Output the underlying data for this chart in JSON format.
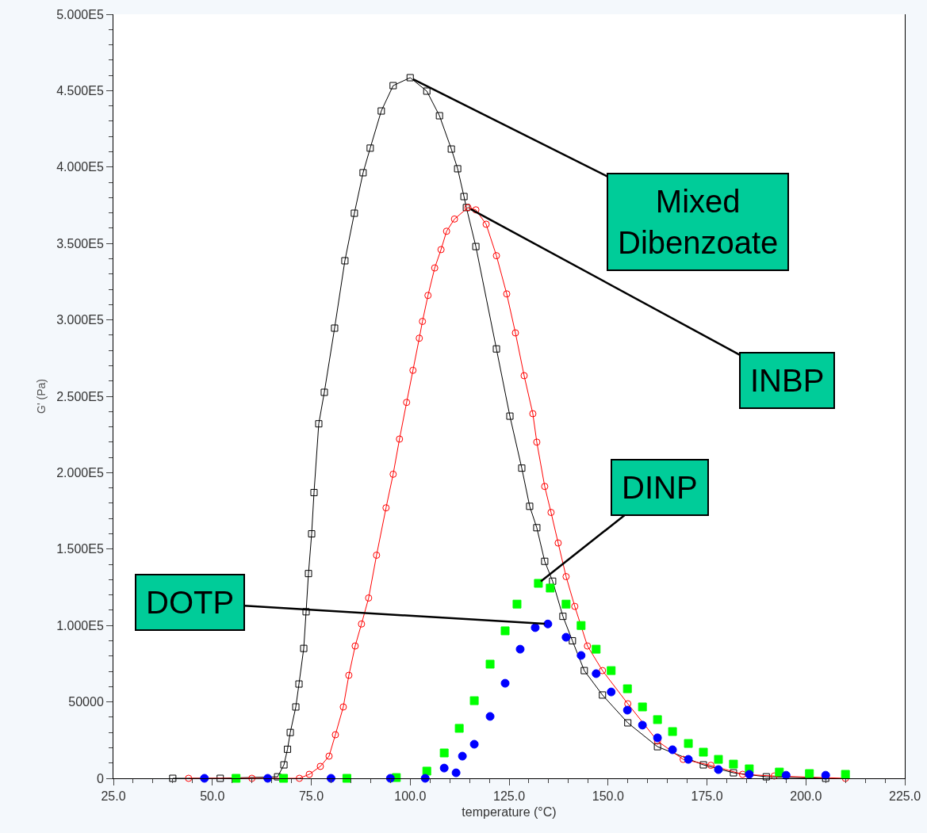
{
  "chart_data": {
    "type": "line",
    "xlabel": "temperature (°C)",
    "ylabel": "G' (Pa)",
    "xlim": [
      25,
      225
    ],
    "xticks": [
      {
        "value": 25,
        "label": "25.0"
      },
      {
        "value": 50,
        "label": "50.0"
      },
      {
        "value": 75,
        "label": "75.0"
      },
      {
        "value": 100,
        "label": "100.0"
      },
      {
        "value": 125,
        "label": "125.0"
      },
      {
        "value": 150,
        "label": "150.0"
      },
      {
        "value": 175,
        "label": "175.0"
      },
      {
        "value": 200,
        "label": "200.0"
      },
      {
        "value": 225,
        "label": "225.0"
      }
    ],
    "ylim": [
      0,
      500000
    ],
    "yticks": [
      0,
      50000,
      {
        "value": 100000,
        "label": "1.000E5"
      },
      {
        "value": 150000,
        "label": "1.500E5"
      },
      {
        "value": 200000,
        "label": "2.000E5"
      },
      {
        "value": 250000,
        "label": "2.500E5"
      },
      {
        "value": 300000,
        "label": "3.000E5"
      },
      {
        "value": 350000,
        "label": "3.500E5"
      },
      {
        "value": 400000,
        "label": "4.000E5"
      },
      {
        "value": 450000,
        "label": "4.500E5"
      },
      {
        "value": 500000,
        "label": "5.000E5"
      }
    ],
    "legend": false,
    "series": [
      {
        "name": "Mixed\nDibenzoate",
        "color": "#000000",
        "marker": "square",
        "line_style": "solid",
        "x": [
          40,
          52,
          66.5,
          68.1,
          69,
          69.7,
          71.1,
          71.9,
          73.1,
          73.7,
          74.3,
          75.1,
          75.7,
          76.9,
          78.3,
          80.9,
          83.5,
          85.9,
          88.1,
          89.9,
          92.7,
          95.7,
          100,
          104.2,
          107.4,
          110.4,
          112,
          113.6,
          114.2,
          116.6,
          121.8,
          125.2,
          128.2,
          130.2,
          132,
          134,
          136,
          138.6,
          141,
          144,
          148.6,
          155,
          162.5,
          174.1,
          181.7,
          190,
          205
        ],
        "values": [
          0,
          0,
          1000,
          8800,
          19000,
          30000,
          46700,
          61700,
          85000,
          109000,
          134000,
          160000,
          187000,
          232000,
          252600,
          294600,
          338700,
          369800,
          396300,
          412400,
          436700,
          453300,
          458500,
          449700,
          433600,
          411800,
          398900,
          380700,
          373500,
          348000,
          281000,
          237000,
          203000,
          178000,
          164000,
          142000,
          129000,
          106000,
          90000,
          70500,
          54500,
          36300,
          20700,
          8800,
          3600,
          1000,
          0
        ]
      },
      {
        "name": "INBP",
        "color": "#ff0000",
        "marker": "circle",
        "line_style": "solid",
        "x": [
          44,
          60,
          72,
          74.5,
          77.3,
          79.5,
          81.1,
          83.1,
          84.5,
          86.1,
          87.7,
          89.5,
          91.5,
          93.9,
          95.7,
          97.3,
          99.1,
          100.7,
          102.3,
          103.1,
          104.5,
          106.2,
          107.8,
          109.2,
          111.2,
          114.6,
          116.6,
          119.2,
          121.8,
          124.4,
          126.6,
          128.8,
          131,
          132,
          134,
          135.6,
          137.4,
          139.4,
          141.6,
          144.8,
          148.6,
          155,
          162.5,
          169,
          176,
          184,
          192,
          210
        ],
        "values": [
          0,
          0,
          0,
          2600,
          7800,
          14500,
          28500,
          46700,
          67400,
          86600,
          101000,
          118000,
          146000,
          177000,
          199000,
          222000,
          246000,
          267000,
          288000,
          299000,
          316000,
          334000,
          346000,
          358000,
          366000,
          373500,
          372000,
          362600,
          342000,
          317000,
          291500,
          263500,
          238600,
          220000,
          191000,
          174000,
          154000,
          132000,
          112500,
          86600,
          70500,
          48800,
          24400,
          12400,
          8500,
          2600,
          1500,
          0
        ]
      },
      {
        "name": "DINP",
        "type": "scatter",
        "color": "#00ff00",
        "marker": "square",
        "x": [
          56,
          68,
          84,
          96.5,
          104.2,
          108.6,
          112.4,
          116.2,
          120.2,
          124,
          127,
          132.4,
          135.4,
          139.4,
          143.2,
          147,
          150.8,
          154.9,
          158.7,
          162.5,
          166.3,
          170.3,
          174.1,
          177.9,
          181.7,
          185.7,
          193.3,
          200.9,
          210
        ],
        "values": [
          0,
          0,
          0,
          500,
          4700,
          16600,
          32700,
          50800,
          74700,
          96500,
          114000,
          127600,
          124500,
          114000,
          100000,
          84500,
          70500,
          58600,
          46700,
          38400,
          30600,
          22800,
          17100,
          12400,
          9300,
          6200,
          4100,
          3100,
          2600
        ]
      },
      {
        "name": "DOTP",
        "type": "scatter",
        "color": "#0000ff",
        "marker": "circle",
        "x": [
          48,
          64,
          80,
          95,
          103.8,
          108.6,
          111.6,
          113.2,
          116.2,
          120.2,
          124,
          127.8,
          131.6,
          134.8,
          139.4,
          143.2,
          147,
          150.8,
          154.9,
          158.7,
          162.5,
          166.3,
          170.3,
          177.9,
          185.7,
          195,
          205
        ],
        "values": [
          0,
          0,
          0,
          0,
          0,
          6700,
          3600,
          14500,
          22300,
          40500,
          62200,
          84500,
          98600,
          101000,
          92300,
          80400,
          68500,
          56500,
          44600,
          34800,
          26500,
          18700,
          12400,
          5700,
          2600,
          2000,
          2000
        ]
      }
    ]
  }
}
